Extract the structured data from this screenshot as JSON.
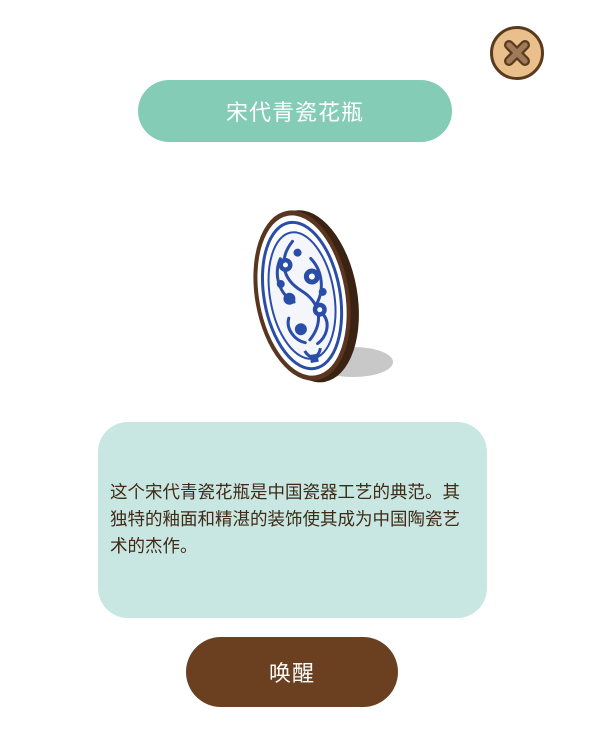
{
  "header": {
    "title": "宋代青瓷花瓶"
  },
  "close_button": {
    "icon": "close-icon"
  },
  "item": {
    "icon": "blue-white-porcelain-plate-icon",
    "description": "这个宋代青瓷花瓶是中国瓷器工艺的典范。其独特的釉面和精湛的装饰使其成为中国陶瓷艺术的杰作。"
  },
  "actions": {
    "awaken_label": "唤醒"
  },
  "colors": {
    "title_pill": "#84ccb5",
    "description_box": "#c8e6e2",
    "awaken_button": "#6a4020",
    "close_button": "#e9bf8c",
    "porcelain_blue": "#2a4ea8"
  }
}
